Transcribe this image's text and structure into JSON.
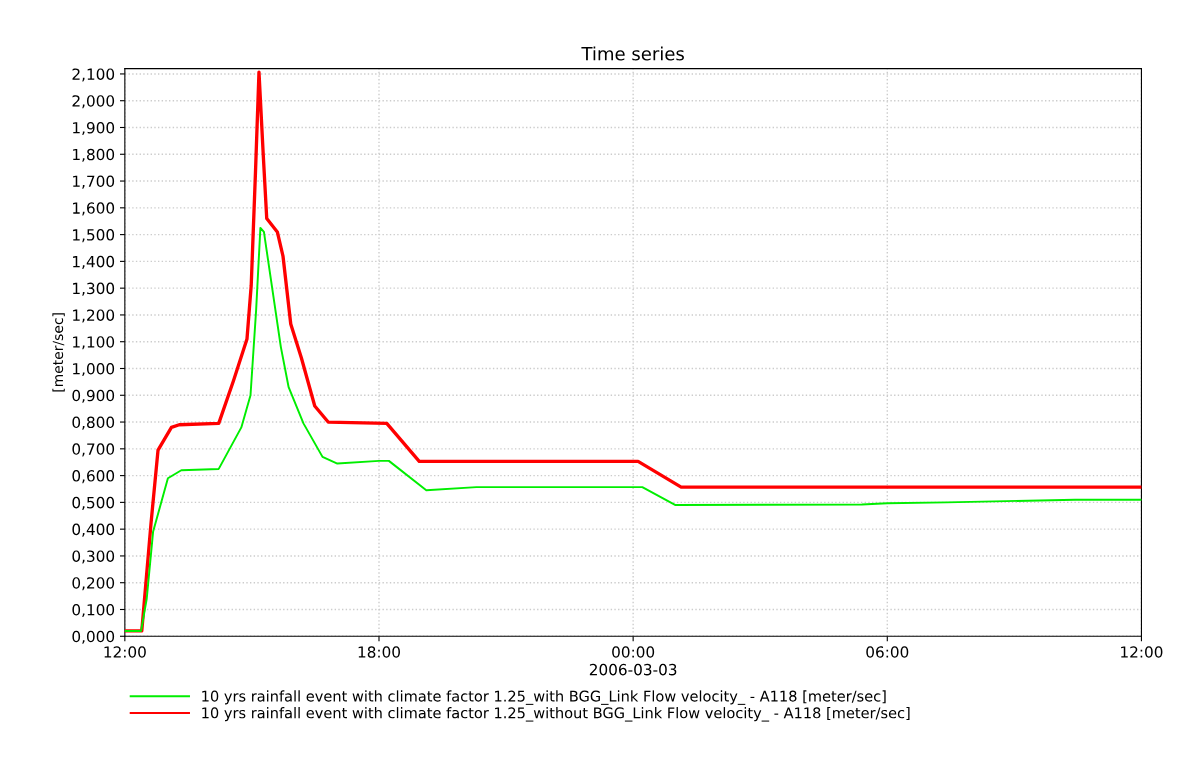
{
  "chart_data": {
    "type": "line",
    "title": "Time series",
    "ylabel": "[meter/sec]",
    "xlabel": "2006-03-03",
    "xlim": [
      "2006-03-02T12:00",
      "2006-03-03T12:00"
    ],
    "ylim": [
      0,
      2.12
    ],
    "xticks": [
      {
        "value": "2006-03-02T12:00",
        "label": "12:00"
      },
      {
        "value": "2006-03-02T18:00",
        "label": "18:00"
      },
      {
        "value": "2006-03-03T00:00",
        "label": "00:00"
      },
      {
        "value": "2006-03-03T06:00",
        "label": "06:00"
      },
      {
        "value": "2006-03-03T12:00",
        "label": "12:00"
      }
    ],
    "yticks": [
      {
        "value": 0,
        "label": "0,000"
      },
      {
        "value": 0.1,
        "label": "0,100"
      },
      {
        "value": 0.2,
        "label": "0,200"
      },
      {
        "value": 0.3,
        "label": "0,300"
      },
      {
        "value": 0.4,
        "label": "0,400"
      },
      {
        "value": 0.5,
        "label": "0,500"
      },
      {
        "value": 0.6,
        "label": "0,600"
      },
      {
        "value": 0.7,
        "label": "0,700"
      },
      {
        "value": 0.8,
        "label": "0,800"
      },
      {
        "value": 0.9,
        "label": "0,900"
      },
      {
        "value": 1.0,
        "label": "1,000"
      },
      {
        "value": 1.1,
        "label": "1,100"
      },
      {
        "value": 1.2,
        "label": "1,200"
      },
      {
        "value": 1.3,
        "label": "1,300"
      },
      {
        "value": 1.4,
        "label": "1,400"
      },
      {
        "value": 1.5,
        "label": "1,500"
      },
      {
        "value": 1.6,
        "label": "1,600"
      },
      {
        "value": 1.7,
        "label": "1,700"
      },
      {
        "value": 1.8,
        "label": "1,800"
      },
      {
        "value": 1.9,
        "label": "1,900"
      },
      {
        "value": 2.0,
        "label": "2,000"
      },
      {
        "value": 2.1,
        "label": "2,100"
      }
    ],
    "grid": true,
    "legend": "bottom",
    "marker": "none",
    "line_style": "solid",
    "series": [
      {
        "name": "10 yrs rainfall event with climate factor 1.25_with BGG_Link Flow velocity_ - A118 [meter/sec]",
        "color": "#00ee00",
        "x": [
          "2006-03-02T12:00",
          "2006-03-02T12:23",
          "2006-03-02T12:31",
          "2006-03-02T12:40",
          "2006-03-02T13:01",
          "2006-03-02T13:20",
          "2006-03-02T14:13",
          "2006-03-02T14:45",
          "2006-03-02T14:58",
          "2006-03-02T15:06",
          "2006-03-02T15:12",
          "2006-03-02T15:17",
          "2006-03-02T15:41",
          "2006-03-02T15:52",
          "2006-03-02T16:13",
          "2006-03-02T16:40",
          "2006-03-02T17:01",
          "2006-03-02T18:00",
          "2006-03-02T18:14",
          "2006-03-02T19:07",
          "2006-03-02T20:18",
          "2006-03-03T00:13",
          "2006-03-03T01:00",
          "2006-03-03T05:24",
          "2006-03-03T06:00",
          "2006-03-03T07:24",
          "2006-03-03T10:26",
          "2006-03-03T12:00"
        ],
        "values": [
          0.02,
          0.02,
          0.14,
          0.39,
          0.59,
          0.62,
          0.625,
          0.78,
          0.9,
          1.22,
          1.525,
          1.51,
          1.08,
          0.93,
          0.795,
          0.67,
          0.645,
          0.655,
          0.655,
          0.545,
          0.557,
          0.557,
          0.49,
          0.492,
          0.497,
          0.5,
          0.51,
          0.51
        ]
      },
      {
        "name": "10 yrs rainfall event with climate factor 1.25_without BGG_Link Flow velocity_ - A118 [meter/sec]",
        "color": "#ff0000",
        "x": [
          "2006-03-02T12:00",
          "2006-03-02T12:24",
          "2006-03-02T12:37",
          "2006-03-02T12:47",
          "2006-03-02T13:06",
          "2006-03-02T13:17",
          "2006-03-02T14:13",
          "2006-03-02T14:34",
          "2006-03-02T14:53",
          "2006-03-02T14:59",
          "2006-03-02T15:05",
          "2006-03-02T15:10",
          "2006-03-02T15:16",
          "2006-03-02T15:21",
          "2006-03-02T15:36",
          "2006-03-02T15:44",
          "2006-03-02T15:55",
          "2006-03-02T16:10",
          "2006-03-02T16:29",
          "2006-03-02T16:48",
          "2006-03-02T18:11",
          "2006-03-02T18:57",
          "2006-03-03T00:07",
          "2006-03-03T01:08",
          "2006-03-03T12:00"
        ],
        "values": [
          0.02,
          0.02,
          0.42,
          0.695,
          0.78,
          0.79,
          0.795,
          0.955,
          1.11,
          1.31,
          1.73,
          2.107,
          1.8,
          1.56,
          1.51,
          1.42,
          1.166,
          1.04,
          0.86,
          0.8,
          0.795,
          0.653,
          0.653,
          0.557,
          0.557
        ]
      }
    ]
  }
}
